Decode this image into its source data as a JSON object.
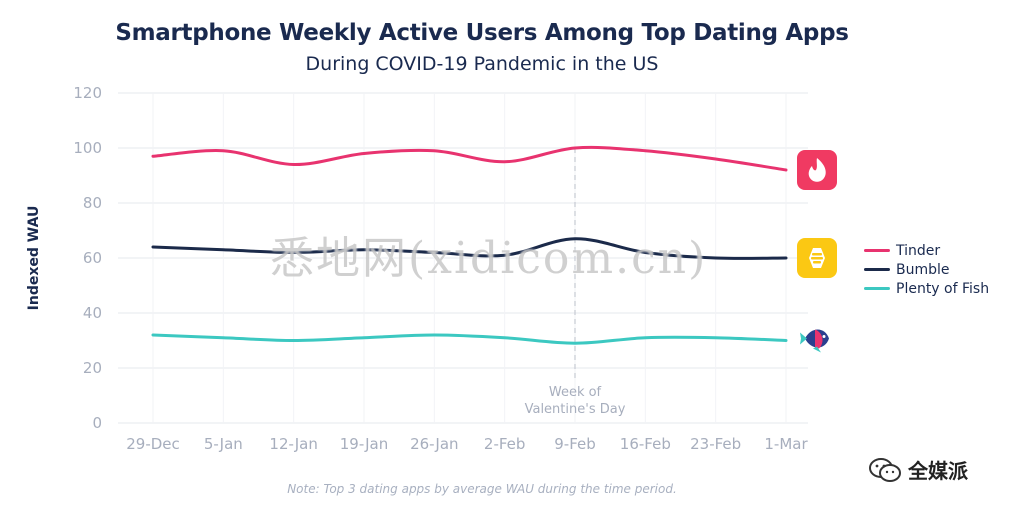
{
  "title": "Smartphone Weekly Active Users Among Top Dating Apps",
  "subtitle": "During COVID-19 Pandemic in the US",
  "note": "Note: Top 3 dating apps by average WAU during the time period.",
  "watermark": "悉地网(xidicom.cn)",
  "brand": "全媒派",
  "annotation": [
    "Week of",
    "Valentine's Day"
  ],
  "colors": {
    "Tinder": "#e8336f",
    "Bumble": "#1b2a4a",
    "Plenty of Fish": "#3cc8c1",
    "axis": "#a7aebd",
    "grid": "#e6e8ee"
  },
  "app_icons": [
    "tinder-flame-icon",
    "bumble-icon",
    "plenty-of-fish-icon"
  ],
  "chart_data": {
    "type": "line",
    "ylabel": "Indexed WAU",
    "xlabel": "",
    "ylim": [
      0,
      120
    ],
    "yticks": [
      0,
      20,
      40,
      60,
      80,
      100,
      120
    ],
    "grid": true,
    "legend_position": "right",
    "categories": [
      "29-Dec",
      "5-Jan",
      "12-Jan",
      "19-Jan",
      "26-Jan",
      "2-Feb",
      "9-Feb",
      "16-Feb",
      "23-Feb",
      "1-Mar"
    ],
    "series": [
      {
        "name": "Tinder",
        "values": [
          97,
          99,
          94,
          98,
          99,
          95,
          100,
          99,
          96,
          92
        ]
      },
      {
        "name": "Bumble",
        "values": [
          64,
          63,
          62,
          63,
          62,
          61,
          67,
          62,
          60,
          60
        ]
      },
      {
        "name": "Plenty of Fish",
        "values": [
          32,
          31,
          30,
          31,
          32,
          31,
          29,
          31,
          31,
          30
        ]
      }
    ],
    "annotation_category": "9-Feb"
  }
}
